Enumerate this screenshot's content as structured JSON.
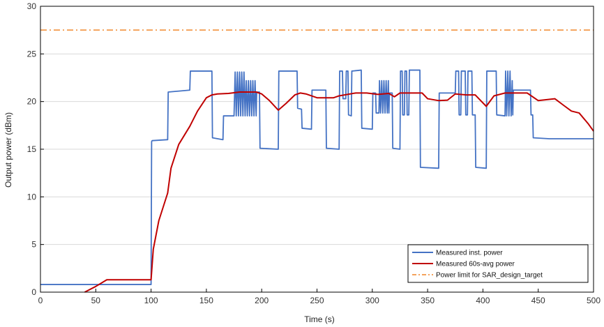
{
  "chart_data": {
    "type": "line",
    "xlabel": "Time (s)",
    "ylabel": "Output power (dBm)",
    "xlim": [
      0,
      500
    ],
    "ylim": [
      0,
      30
    ],
    "x_ticks": [
      0,
      50,
      100,
      150,
      200,
      250,
      300,
      350,
      400,
      450,
      500
    ],
    "y_ticks": [
      0,
      5,
      10,
      15,
      20,
      25,
      30
    ],
    "grid": "horizontal",
    "legend_position": "bottom-right",
    "series": [
      {
        "name": "Measured inst. power",
        "color": "#4472C4",
        "style": "solid",
        "points": [
          [
            0,
            0.8
          ],
          [
            100,
            0.8
          ],
          [
            100.5,
            15.8
          ],
          [
            101,
            15.9
          ],
          [
            115,
            16.0
          ],
          [
            115.5,
            21.0
          ],
          [
            135,
            21.2
          ],
          [
            135.5,
            23.2
          ],
          [
            155,
            23.2
          ],
          [
            155.5,
            16.2
          ],
          [
            165,
            16.0
          ],
          [
            165.5,
            18.5
          ],
          [
            175,
            18.5
          ],
          [
            176,
            23.1
          ],
          [
            177,
            18.5
          ],
          [
            178,
            23.1
          ],
          [
            179,
            18.5
          ],
          [
            180,
            23.1
          ],
          [
            181,
            18.5
          ],
          [
            182,
            23.1
          ],
          [
            183,
            18.5
          ],
          [
            184,
            23.1
          ],
          [
            185,
            18.5
          ],
          [
            186,
            22.2
          ],
          [
            187,
            18.5
          ],
          [
            188,
            22.2
          ],
          [
            189,
            18.5
          ],
          [
            190,
            22.2
          ],
          [
            191,
            18.5
          ],
          [
            192,
            22.2
          ],
          [
            193,
            18.5
          ],
          [
            194,
            22.2
          ],
          [
            195,
            18.5
          ],
          [
            195.5,
            21.0
          ],
          [
            198,
            21.0
          ],
          [
            198.5,
            15.1
          ],
          [
            215,
            15.0
          ],
          [
            215.5,
            23.2
          ],
          [
            232,
            23.2
          ],
          [
            232.5,
            19.3
          ],
          [
            236,
            19.2
          ],
          [
            236.5,
            17.2
          ],
          [
            245,
            17.1
          ],
          [
            245.5,
            21.2
          ],
          [
            258,
            21.2
          ],
          [
            258.5,
            15.1
          ],
          [
            270,
            15.0
          ],
          [
            270.5,
            23.2
          ],
          [
            273,
            23.2
          ],
          [
            273.5,
            20.3
          ],
          [
            276,
            20.3
          ],
          [
            276.5,
            23.2
          ],
          [
            278,
            23.2
          ],
          [
            278.5,
            18.6
          ],
          [
            281,
            18.5
          ],
          [
            281.5,
            23.2
          ],
          [
            290,
            23.3
          ],
          [
            290.5,
            17.2
          ],
          [
            300,
            17.1
          ],
          [
            300.5,
            20.9
          ],
          [
            303,
            20.9
          ],
          [
            303.5,
            18.8
          ],
          [
            306,
            18.8
          ],
          [
            306.5,
            22.2
          ],
          [
            307.5,
            18.8
          ],
          [
            308.5,
            22.2
          ],
          [
            309.5,
            18.8
          ],
          [
            310.5,
            22.2
          ],
          [
            311.5,
            18.8
          ],
          [
            312.5,
            22.2
          ],
          [
            313.5,
            18.8
          ],
          [
            314.5,
            22.2
          ],
          [
            315,
            18.8
          ],
          [
            315.5,
            20.9
          ],
          [
            318,
            20.9
          ],
          [
            318.5,
            15.1
          ],
          [
            325,
            15.0
          ],
          [
            325.5,
            23.2
          ],
          [
            327,
            23.2
          ],
          [
            327.5,
            18.6
          ],
          [
            329,
            18.6
          ],
          [
            329.5,
            23.2
          ],
          [
            331,
            23.2
          ],
          [
            331.5,
            18.6
          ],
          [
            333,
            18.6
          ],
          [
            333.5,
            23.3
          ],
          [
            343,
            23.3
          ],
          [
            343.5,
            13.1
          ],
          [
            360,
            13.0
          ],
          [
            360.5,
            20.9
          ],
          [
            375,
            20.9
          ],
          [
            375.5,
            23.2
          ],
          [
            378,
            23.2
          ],
          [
            378.5,
            18.6
          ],
          [
            380,
            18.6
          ],
          [
            380.5,
            23.2
          ],
          [
            384,
            23.2
          ],
          [
            384.5,
            18.6
          ],
          [
            386,
            18.6
          ],
          [
            386.5,
            23.2
          ],
          [
            390,
            23.2
          ],
          [
            390.5,
            18.6
          ],
          [
            393,
            18.6
          ],
          [
            393.5,
            13.1
          ],
          [
            403,
            13.0
          ],
          [
            403.5,
            23.2
          ],
          [
            412,
            23.2
          ],
          [
            412.5,
            18.6
          ],
          [
            420,
            18.5
          ],
          [
            420.5,
            23.2
          ],
          [
            421.5,
            18.5
          ],
          [
            422.5,
            23.2
          ],
          [
            423.5,
            18.5
          ],
          [
            424.5,
            23.2
          ],
          [
            425.5,
            18.5
          ],
          [
            426.5,
            22.2
          ],
          [
            427,
            18.6
          ],
          [
            427.5,
            21.2
          ],
          [
            443,
            21.2
          ],
          [
            443.5,
            18.6
          ],
          [
            445,
            18.6
          ],
          [
            445.5,
            16.2
          ],
          [
            460,
            16.1
          ],
          [
            500,
            16.1
          ]
        ]
      },
      {
        "name": "Measured 60s-avg power",
        "color": "#C00000",
        "style": "solid",
        "points": [
          [
            40,
            0
          ],
          [
            50,
            0.6
          ],
          [
            60,
            1.3
          ],
          [
            100,
            1.3
          ],
          [
            102,
            4.5
          ],
          [
            107,
            7.5
          ],
          [
            115,
            10.4
          ],
          [
            118,
            13.0
          ],
          [
            125,
            15.5
          ],
          [
            135,
            17.4
          ],
          [
            142,
            19.0
          ],
          [
            150,
            20.4
          ],
          [
            155,
            20.7
          ],
          [
            160,
            20.8
          ],
          [
            170,
            20.85
          ],
          [
            180,
            21.0
          ],
          [
            195,
            21.0
          ],
          [
            200,
            20.8
          ],
          [
            207,
            20.1
          ],
          [
            215,
            19.1
          ],
          [
            222,
            19.8
          ],
          [
            230,
            20.7
          ],
          [
            235,
            20.9
          ],
          [
            240,
            20.8
          ],
          [
            250,
            20.4
          ],
          [
            265,
            20.4
          ],
          [
            270,
            20.6
          ],
          [
            285,
            20.9
          ],
          [
            295,
            20.9
          ],
          [
            305,
            20.75
          ],
          [
            315,
            20.85
          ],
          [
            320,
            20.5
          ],
          [
            325,
            20.9
          ],
          [
            345,
            20.9
          ],
          [
            350,
            20.3
          ],
          [
            360,
            20.1
          ],
          [
            368,
            20.15
          ],
          [
            375,
            20.8
          ],
          [
            385,
            20.7
          ],
          [
            393,
            20.7
          ],
          [
            398,
            20.1
          ],
          [
            403,
            19.5
          ],
          [
            410,
            20.6
          ],
          [
            420,
            20.9
          ],
          [
            440,
            20.9
          ],
          [
            450,
            20.1
          ],
          [
            465,
            20.3
          ],
          [
            473,
            19.6
          ],
          [
            480,
            19.0
          ],
          [
            487,
            18.8
          ],
          [
            495,
            17.7
          ],
          [
            500,
            16.9
          ]
        ]
      },
      {
        "name": "Power limit for SAR_design_target",
        "color": "#F4A25C",
        "style": "dash-dot",
        "points": [
          [
            0,
            27.5
          ],
          [
            500,
            27.5
          ]
        ]
      }
    ]
  }
}
